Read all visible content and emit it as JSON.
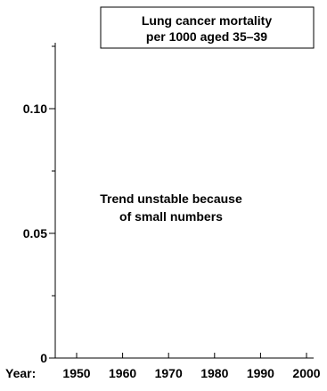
{
  "chart_data": {
    "type": "line",
    "title_lines": [
      "Lung cancer mortality",
      "per 1000 aged 35–39"
    ],
    "x_prefix": "Year:",
    "x_ticks": [
      1950,
      1960,
      1970,
      1980,
      1990,
      2000
    ],
    "x_tick_labels": [
      "1950",
      "1960",
      "1970",
      "1980",
      "1990",
      "2000"
    ],
    "xlim": [
      1950,
      2000
    ],
    "ylim": [
      0,
      0.125
    ],
    "y_major_ticks": [
      0,
      0.05,
      0.1
    ],
    "y_minor_ticks": [
      0.025,
      0.075,
      0.125
    ],
    "y_tick_labels": [
      "0",
      "0.05",
      "0.10"
    ],
    "annotation_lines": [
      "Trend unstable because",
      "of small numbers"
    ],
    "series": [],
    "grid": false,
    "colors": {
      "axis": "#000000",
      "text": "#000000",
      "background": "#ffffff"
    }
  }
}
